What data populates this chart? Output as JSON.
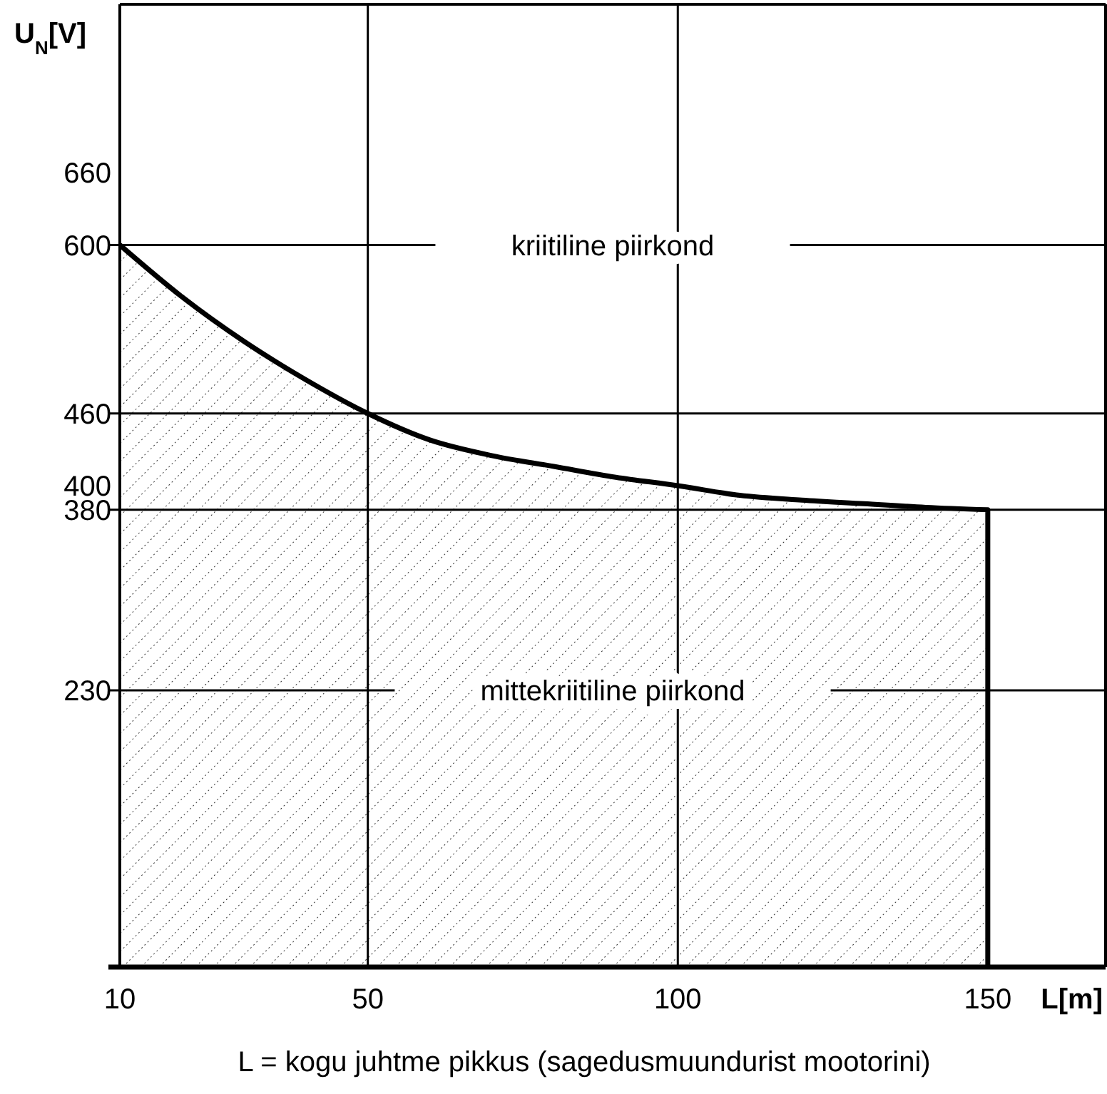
{
  "chart_data": {
    "type": "area",
    "xlabel": "L[m]",
    "ylabel": "U$_{N}$[V]",
    "x": [
      10,
      20,
      30,
      40,
      50,
      60,
      70,
      80,
      90,
      100,
      110,
      120,
      130,
      140,
      150
    ],
    "series": [
      {
        "color": "#000000",
        "values": [
          600,
          557,
          520,
          488,
          460,
          438,
          425,
          416,
          407,
          400,
          392,
          388,
          385,
          382,
          380
        ]
      }
    ],
    "xlim": [
      10,
      169
    ],
    "ylim": [
      0,
      800
    ],
    "xticks": [
      10,
      50,
      100,
      150
    ],
    "yticks": [
      660,
      600,
      460,
      400,
      380,
      230
    ],
    "grid": false,
    "ref_lines": [
      {
        "axis": "y",
        "value": 600,
        "label": "kriitiline piirkond"
      },
      {
        "axis": "y",
        "value": 460
      },
      {
        "axis": "y",
        "value": 380
      },
      {
        "axis": "y",
        "value": 230,
        "label": "mittekriitiline piirkond"
      },
      {
        "axis": "x",
        "value": 50
      },
      {
        "axis": "x",
        "value": 100
      }
    ],
    "annotations": [
      "L = kogu juhtme pikkus (sagedusmuundurist mootorini)"
    ]
  }
}
